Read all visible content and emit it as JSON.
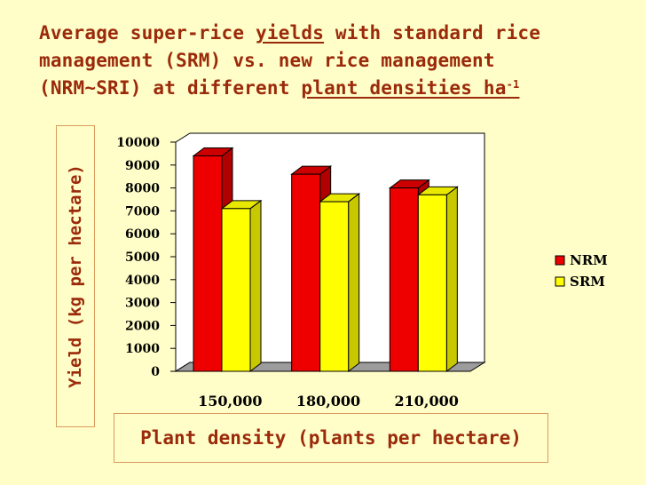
{
  "title": {
    "part1": "Average super-rice ",
    "yields": "yields",
    "part2": " with standard rice management (SRM) vs. new rice management (NRM~SRI)  at different ",
    "densities": "plant densities ha",
    "sup": "-1"
  },
  "colors": {
    "NRM": "#ee0000",
    "SRM": "#ffff00",
    "plot_bg": "#ffffff",
    "floor": "#9c9c9c"
  },
  "chart_data": {
    "type": "bar",
    "categories": [
      "150,000",
      "180,000",
      "210,000"
    ],
    "series": [
      {
        "name": "NRM",
        "values": [
          9400,
          8600,
          8000
        ]
      },
      {
        "name": "SRM",
        "values": [
          7100,
          7400,
          7700
        ]
      }
    ],
    "ylim": [
      0,
      10000
    ],
    "yticks": [
      "0",
      "1000",
      "2000",
      "3000",
      "4000",
      "5000",
      "6000",
      "7000",
      "8000",
      "9000",
      "10000"
    ],
    "xlabel": "Plant density (plants per hectare)",
    "ylabel": "Yield (kg per hectare)",
    "legend_position": "right",
    "style": "3d"
  }
}
